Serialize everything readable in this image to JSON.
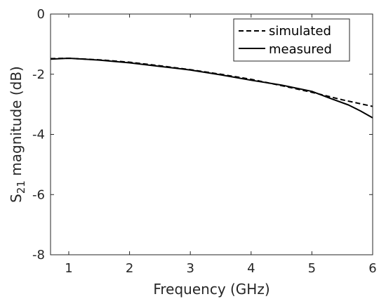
{
  "chart_data": {
    "type": "line",
    "xlabel": "Frequency (GHz)",
    "ylabel_main": "S",
    "ylabel_sub": "21",
    "ylabel_rest": " magnitude (dB)",
    "xlim": [
      0.7,
      6
    ],
    "ylim": [
      -8,
      0
    ],
    "xticks": [
      1,
      2,
      3,
      4,
      5,
      6
    ],
    "yticks": [
      0,
      -2,
      -4,
      -6,
      -8
    ],
    "grid": false,
    "legend_position": "top-right",
    "series": [
      {
        "name": "simulated",
        "style": "dashed",
        "color": "#000000",
        "x": [
          0.7,
          1.0,
          1.5,
          2.0,
          2.5,
          3.0,
          3.5,
          4.0,
          4.5,
          5.0,
          5.5,
          6.0
        ],
        "y": [
          -1.48,
          -1.47,
          -1.52,
          -1.6,
          -1.72,
          -1.85,
          -2.0,
          -2.17,
          -2.38,
          -2.6,
          -2.85,
          -3.07
        ]
      },
      {
        "name": "measured",
        "style": "solid",
        "color": "#000000",
        "x": [
          0.7,
          1.0,
          1.5,
          2.0,
          2.5,
          3.0,
          3.5,
          4.0,
          4.5,
          5.0,
          5.3,
          5.6,
          5.8,
          6.0
        ],
        "y": [
          -1.5,
          -1.47,
          -1.53,
          -1.62,
          -1.74,
          -1.86,
          -2.02,
          -2.2,
          -2.36,
          -2.57,
          -2.8,
          -3.02,
          -3.22,
          -3.45
        ]
      }
    ]
  }
}
